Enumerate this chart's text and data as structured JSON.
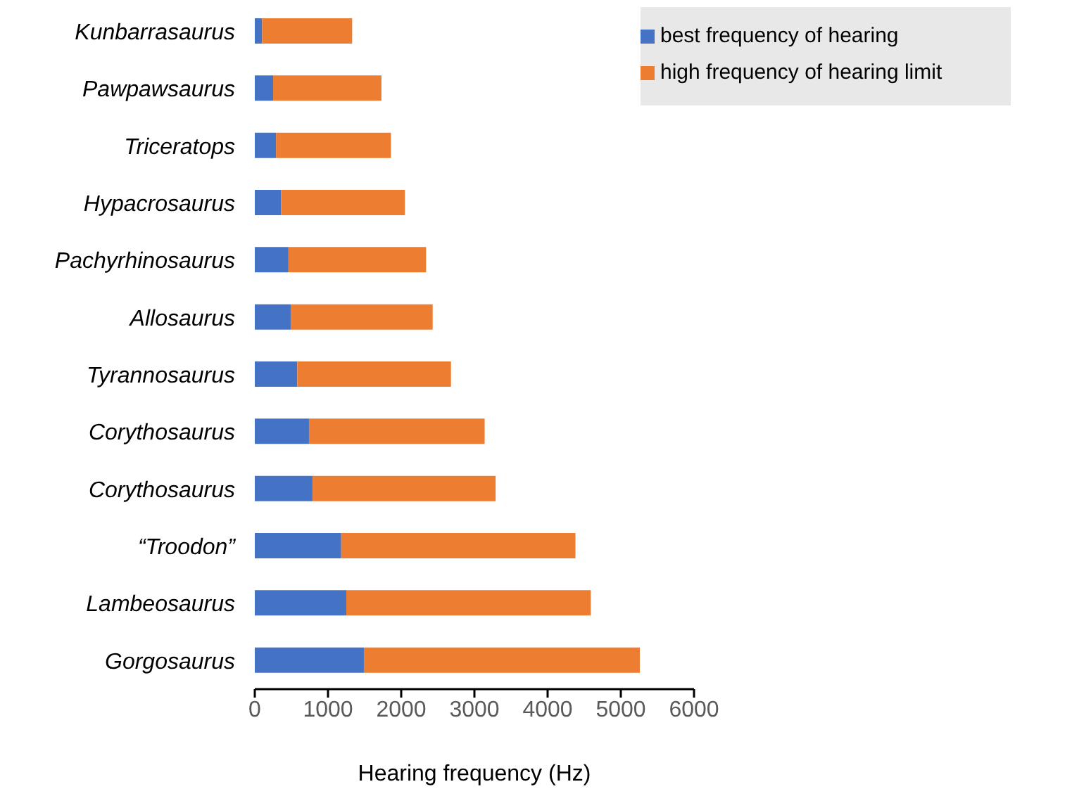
{
  "chart_data": {
    "type": "bar",
    "orientation": "horizontal",
    "stacked": true,
    "xlabel": "Hearing frequency (Hz)",
    "categories": [
      "Kunbarrasaurus",
      "Pawpawsaurus",
      "Triceratops",
      "Hypacrosaurus",
      "Pachyrhinosaurus",
      "Allosaurus",
      "Tyrannosaurus",
      "Corythosaurus",
      "Corythosaurus",
      "“Troodon”",
      "Lambeosaurus",
      "Gorgosaurus"
    ],
    "series": [
      {
        "name": "best frequency of hearing",
        "color": "#4472c4",
        "values": [
          100,
          250,
          290,
          360,
          460,
          490,
          580,
          740,
          790,
          1180,
          1250,
          1490
        ]
      },
      {
        "name": "high frequency of hearing limit",
        "color": "#ed7d31",
        "values": [
          1230,
          1480,
          1570,
          1690,
          1880,
          1940,
          2100,
          2400,
          2500,
          3200,
          3340,
          3770
        ]
      }
    ],
    "xlim": [
      0,
      6000
    ],
    "xticks": [
      0,
      1000,
      2000,
      3000,
      4000,
      5000,
      6000
    ],
    "grid": false,
    "legend": "top right"
  }
}
